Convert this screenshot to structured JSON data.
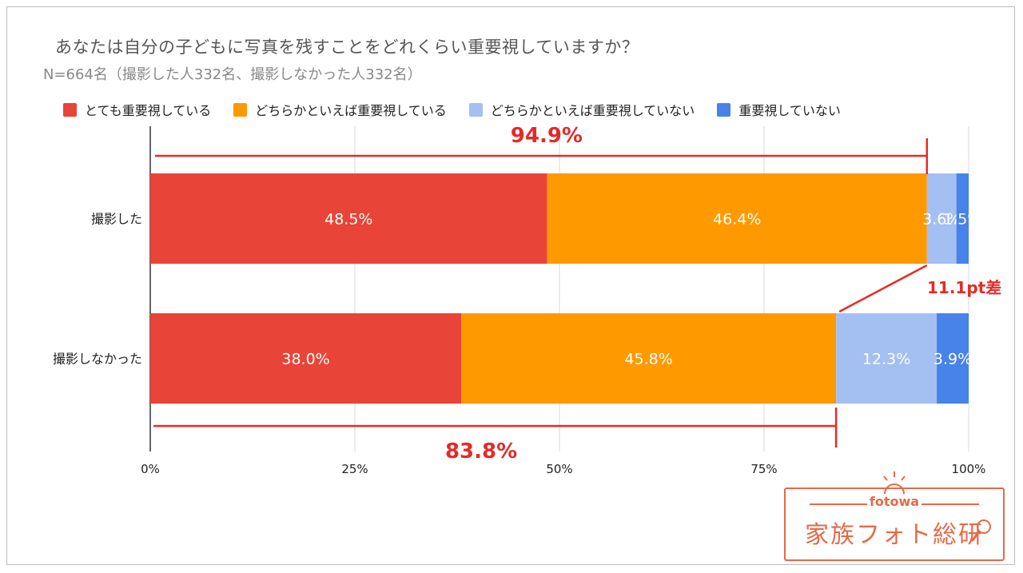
{
  "title": "あなたは自分の子どもに写真を残すことをどれくらい重要視していますか？",
  "subtitle": "N=664名（撮影した人332名、撮影しなかった人332名）",
  "chart_data": {
    "type": "bar",
    "orientation": "horizontal",
    "stacked": true,
    "categories": [
      "撮影した",
      "撮影しなかった"
    ],
    "series": [
      {
        "name": "とても重要視している",
        "color": "#e84437",
        "values": [
          48.5,
          38.0
        ],
        "labels": [
          "48.5%",
          "38.0%"
        ]
      },
      {
        "name": "どちらかといえば重要視している",
        "color": "#ff9900",
        "values": [
          46.4,
          45.8
        ],
        "labels": [
          "46.4%",
          "45.8%"
        ]
      },
      {
        "name": "どちらかといえば重要視していない",
        "color": "#a4bff2",
        "values": [
          3.6,
          12.3
        ],
        "labels": [
          "3.6%",
          "12.3%"
        ]
      },
      {
        "name": "重要視していない",
        "color": "#4783e8",
        "values": [
          1.5,
          3.9
        ],
        "labels": [
          "1.5%",
          "3.9%"
        ]
      }
    ],
    "xlim": [
      0,
      100
    ],
    "xticks": [
      0,
      25,
      50,
      75,
      100
    ],
    "xtick_labels": [
      "0%",
      "25%",
      "50%",
      "75%",
      "100%"
    ],
    "annotations": {
      "top_bracket": {
        "value": 94.9,
        "label": "94.9%"
      },
      "bottom_bracket": {
        "value": 83.8,
        "label": "83.8%"
      },
      "difference": {
        "label": "11.1pt差"
      }
    },
    "annotation_color": "#e52a26"
  },
  "logo": {
    "small": "fotowa",
    "main": "家族フォト総研"
  }
}
